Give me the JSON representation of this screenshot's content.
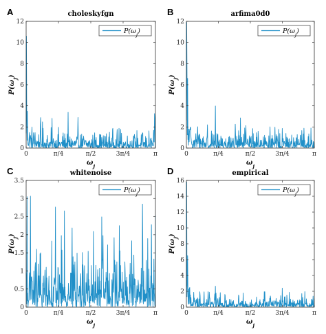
{
  "chart_data": [
    {
      "type": "line",
      "panel_letter": "A",
      "title": "choleskyfgn",
      "xlabel": "ω_j",
      "ylabel": "P(ω_j)",
      "xlim": [
        0,
        3.1416
      ],
      "ylim": [
        0,
        12
      ],
      "yticks": [
        "0",
        "2",
        "4",
        "6",
        "8",
        "10",
        "12"
      ],
      "xtick_labels": [
        "0",
        "π/4",
        "π/2",
        "3π/4",
        "π"
      ],
      "legend": true,
      "legend_position": "top-right",
      "color": "#1f8fc8",
      "series": [
        {
          "name": "P(ω_j)",
          "peak": 10.6,
          "second_peak": 3.5,
          "baseline": 0.45,
          "decay": "power-law"
        }
      ]
    },
    {
      "type": "line",
      "panel_letter": "B",
      "title": "arfima0d0",
      "xlabel": "ω_j",
      "ylabel": "P(ω_j)",
      "xlim": [
        0,
        3.1416
      ],
      "ylim": [
        0,
        12
      ],
      "yticks": [
        "0",
        "2",
        "4",
        "6",
        "8",
        "10",
        "12"
      ],
      "xtick_labels": [
        "0",
        "π/4",
        "π/2",
        "3π/4",
        "π"
      ],
      "legend": true,
      "legend_position": "top-right",
      "color": "#1f8fc8",
      "series": [
        {
          "name": "P(ω_j)",
          "peak": 11.9,
          "second_peak": 6.6,
          "baseline": 0.5,
          "decay": "power-law"
        }
      ]
    },
    {
      "type": "line",
      "panel_letter": "C",
      "title": "whitenoise",
      "xlabel": "ω_j",
      "ylabel": "P(ω_j)",
      "xlim": [
        0,
        3.1416
      ],
      "ylim": [
        0,
        3.5
      ],
      "yticks": [
        "0",
        "0.5",
        "1",
        "1.5",
        "2",
        "2.5",
        "3",
        "3.5"
      ],
      "xtick_labels": [
        "0",
        "π/4",
        "π/2",
        "3π/4",
        "π"
      ],
      "legend": true,
      "legend_position": "top-right",
      "color": "#1f8fc8",
      "series": [
        {
          "name": "P(ω_j)",
          "peak": 3.05,
          "second_peak": 2.25,
          "baseline": 0.5,
          "decay": "flat"
        }
      ]
    },
    {
      "type": "line",
      "panel_letter": "D",
      "title": "empirical",
      "xlabel": "ω_j",
      "ylabel": "P(ω_j)",
      "xlim": [
        0,
        3.1416
      ],
      "ylim": [
        0,
        16
      ],
      "yticks": [
        "0",
        "2",
        "4",
        "6",
        "8",
        "10",
        "12",
        "14",
        "16"
      ],
      "xtick_labels": [
        "0",
        "π/4",
        "π/2",
        "3π/4",
        "π"
      ],
      "legend": true,
      "legend_position": "top-right",
      "color": "#1f8fc8",
      "series": [
        {
          "name": "P(ω_j)",
          "peak": 15.8,
          "second_peak": 6.5,
          "baseline": 0.45,
          "decay": "power-law"
        }
      ]
    }
  ]
}
